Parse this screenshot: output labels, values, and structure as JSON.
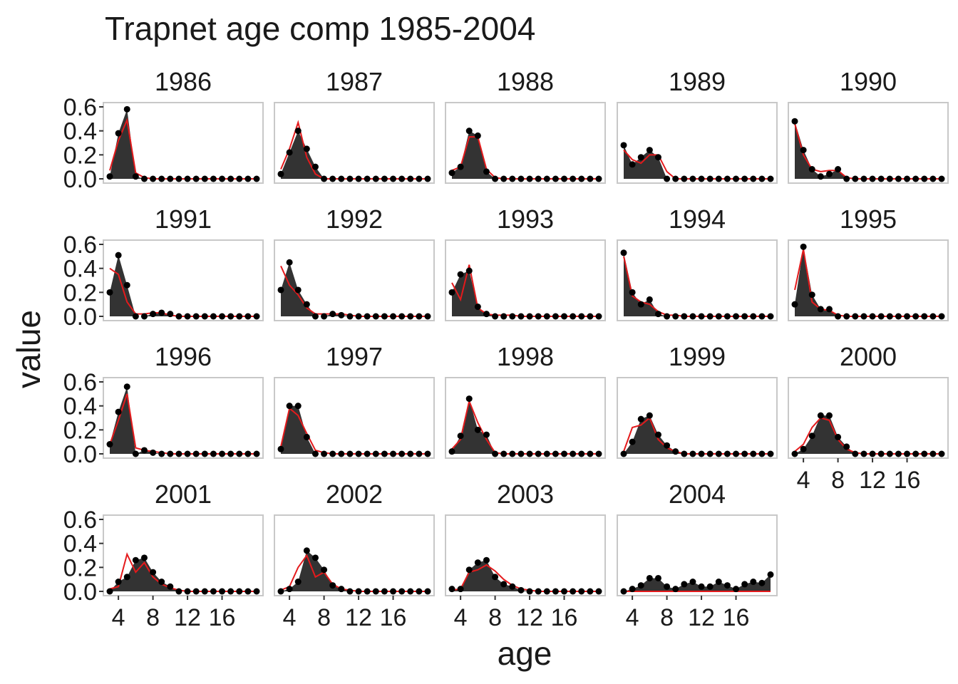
{
  "chart_data": {
    "type": "area",
    "title": "Trapnet age comp 1985-2004",
    "xlabel": "age",
    "ylabel": "value",
    "xlim": [
      3,
      20
    ],
    "ylim": [
      0,
      0.6
    ],
    "x_ticks": [
      4,
      8,
      12,
      16
    ],
    "y_ticks": [
      0.0,
      0.2,
      0.4,
      0.6
    ],
    "y_tick_labels": [
      "0.0",
      "0.2",
      "0.4",
      "0.6"
    ],
    "x": [
      3,
      4,
      5,
      6,
      7,
      8,
      9,
      10,
      11,
      12,
      13,
      14,
      15,
      16,
      17,
      18,
      19,
      20
    ],
    "series": [
      {
        "name": "observed (filled area with points)",
        "color": "#333333"
      },
      {
        "name": "predicted (line)",
        "color": "#e41a1c"
      }
    ],
    "panels": [
      {
        "label": "1986",
        "observed": [
          0.02,
          0.38,
          0.58,
          0.02,
          0,
          0,
          0,
          0,
          0,
          0,
          0,
          0,
          0,
          0,
          0,
          0,
          0,
          0
        ],
        "predicted": [
          0.07,
          0.32,
          0.49,
          0.05,
          0.01,
          0,
          0,
          0,
          0,
          0,
          0,
          0,
          0,
          0,
          0,
          0,
          0,
          0
        ]
      },
      {
        "label": "1987",
        "observed": [
          0.04,
          0.22,
          0.4,
          0.25,
          0.1,
          0,
          0,
          0,
          0,
          0,
          0,
          0,
          0,
          0,
          0,
          0,
          0,
          0
        ],
        "predicted": [
          0.08,
          0.25,
          0.47,
          0.18,
          0.04,
          0,
          0,
          0,
          0,
          0,
          0,
          0,
          0,
          0,
          0,
          0,
          0,
          0
        ]
      },
      {
        "label": "1988",
        "observed": [
          0.05,
          0.1,
          0.4,
          0.36,
          0.06,
          0,
          0,
          0,
          0,
          0,
          0,
          0,
          0,
          0,
          0,
          0,
          0,
          0
        ],
        "predicted": [
          0.07,
          0.1,
          0.35,
          0.35,
          0.08,
          0.01,
          0,
          0,
          0,
          0,
          0,
          0,
          0,
          0,
          0,
          0,
          0,
          0
        ]
      },
      {
        "label": "1989",
        "observed": [
          0.28,
          0.12,
          0.18,
          0.24,
          0.18,
          0,
          0,
          0,
          0,
          0,
          0,
          0,
          0,
          0,
          0,
          0,
          0,
          0
        ],
        "predicted": [
          0.24,
          0.16,
          0.13,
          0.2,
          0.2,
          0.06,
          0,
          0,
          0,
          0,
          0,
          0,
          0,
          0,
          0,
          0,
          0,
          0
        ]
      },
      {
        "label": "1990",
        "observed": [
          0.48,
          0.24,
          0.08,
          0.02,
          0.04,
          0.08,
          0,
          0,
          0,
          0,
          0,
          0,
          0,
          0,
          0,
          0,
          0,
          0
        ],
        "predicted": [
          0.46,
          0.2,
          0.08,
          0.06,
          0.07,
          0.07,
          0.01,
          0,
          0,
          0,
          0,
          0,
          0,
          0,
          0,
          0,
          0,
          0
        ]
      },
      {
        "label": "1991",
        "observed": [
          0.2,
          0.51,
          0.26,
          0,
          0,
          0.02,
          0.03,
          0.02,
          0,
          0,
          0,
          0,
          0,
          0,
          0,
          0,
          0,
          0
        ],
        "predicted": [
          0.4,
          0.35,
          0.12,
          0.02,
          0.02,
          0.03,
          0.03,
          0.01,
          0,
          0,
          0,
          0,
          0,
          0,
          0,
          0,
          0,
          0
        ]
      },
      {
        "label": "1992",
        "observed": [
          0.22,
          0.45,
          0.22,
          0.1,
          0,
          0,
          0.02,
          0.01,
          0,
          0,
          0,
          0,
          0,
          0,
          0,
          0,
          0,
          0
        ],
        "predicted": [
          0.42,
          0.26,
          0.18,
          0.07,
          0.02,
          0.02,
          0.02,
          0.02,
          0.01,
          0,
          0,
          0,
          0,
          0,
          0,
          0,
          0,
          0
        ]
      },
      {
        "label": "1993",
        "observed": [
          0.2,
          0.35,
          0.38,
          0.08,
          0.02,
          0,
          0,
          0,
          0,
          0,
          0,
          0,
          0,
          0,
          0,
          0,
          0,
          0
        ],
        "predicted": [
          0.28,
          0.14,
          0.43,
          0.07,
          0.02,
          0.01,
          0.01,
          0.01,
          0,
          0,
          0,
          0,
          0,
          0,
          0,
          0,
          0,
          0
        ]
      },
      {
        "label": "1994",
        "observed": [
          0.53,
          0.2,
          0.1,
          0.14,
          0.02,
          0,
          0,
          0,
          0,
          0,
          0,
          0,
          0,
          0,
          0,
          0,
          0,
          0
        ],
        "predicted": [
          0.5,
          0.17,
          0.12,
          0.1,
          0.04,
          0.01,
          0.01,
          0,
          0,
          0,
          0,
          0,
          0,
          0,
          0,
          0,
          0,
          0
        ]
      },
      {
        "label": "1995",
        "observed": [
          0.1,
          0.58,
          0.18,
          0.06,
          0.06,
          0,
          0,
          0,
          0,
          0,
          0,
          0,
          0,
          0,
          0,
          0,
          0,
          0
        ],
        "predicted": [
          0.22,
          0.56,
          0.12,
          0.06,
          0.05,
          0.01,
          0,
          0,
          0,
          0,
          0,
          0,
          0,
          0,
          0,
          0,
          0,
          0
        ]
      },
      {
        "label": "1996",
        "observed": [
          0.08,
          0.35,
          0.56,
          0,
          0.03,
          0.01,
          0,
          0,
          0,
          0,
          0,
          0,
          0,
          0,
          0,
          0,
          0,
          0
        ],
        "predicted": [
          0.08,
          0.28,
          0.5,
          0.05,
          0.03,
          0.02,
          0.01,
          0,
          0,
          0,
          0,
          0,
          0,
          0,
          0,
          0,
          0,
          0
        ]
      },
      {
        "label": "1997",
        "observed": [
          0.04,
          0.4,
          0.4,
          0.14,
          0,
          0,
          0,
          0,
          0,
          0,
          0,
          0,
          0,
          0,
          0,
          0,
          0,
          0
        ],
        "predicted": [
          0.06,
          0.38,
          0.32,
          0.17,
          0.03,
          0.01,
          0,
          0,
          0,
          0,
          0,
          0,
          0,
          0,
          0,
          0,
          0,
          0
        ]
      },
      {
        "label": "1998",
        "observed": [
          0.02,
          0.15,
          0.46,
          0.2,
          0.16,
          0,
          0,
          0,
          0,
          0,
          0,
          0,
          0,
          0,
          0,
          0,
          0,
          0
        ],
        "predicted": [
          0.04,
          0.12,
          0.44,
          0.26,
          0.12,
          0.01,
          0,
          0,
          0,
          0,
          0,
          0,
          0,
          0,
          0,
          0,
          0,
          0
        ]
      },
      {
        "label": "1999",
        "observed": [
          0,
          0.1,
          0.29,
          0.32,
          0.16,
          0.07,
          0.02,
          0,
          0,
          0,
          0,
          0,
          0,
          0,
          0,
          0,
          0,
          0
        ],
        "predicted": [
          0.02,
          0.22,
          0.24,
          0.3,
          0.12,
          0.05,
          0.02,
          0,
          0,
          0,
          0,
          0,
          0,
          0,
          0,
          0,
          0,
          0
        ]
      },
      {
        "label": "2000",
        "observed": [
          0,
          0.04,
          0.15,
          0.32,
          0.32,
          0.14,
          0.06,
          0,
          0,
          0,
          0,
          0,
          0,
          0,
          0,
          0,
          0,
          0
        ],
        "predicted": [
          0.02,
          0.08,
          0.22,
          0.3,
          0.28,
          0.12,
          0.04,
          0.01,
          0,
          0,
          0,
          0,
          0,
          0,
          0,
          0,
          0,
          0
        ]
      },
      {
        "label": "2001",
        "observed": [
          0,
          0.08,
          0.12,
          0.26,
          0.28,
          0.16,
          0.08,
          0.04,
          0,
          0,
          0,
          0,
          0,
          0,
          0,
          0,
          0,
          0
        ],
        "predicted": [
          0.02,
          0.04,
          0.31,
          0.16,
          0.24,
          0.12,
          0.06,
          0.03,
          0.01,
          0,
          0,
          0,
          0,
          0,
          0,
          0,
          0,
          0
        ]
      },
      {
        "label": "2002",
        "observed": [
          0,
          0.02,
          0.08,
          0.34,
          0.28,
          0.18,
          0.05,
          0.02,
          0,
          0,
          0,
          0,
          0,
          0,
          0,
          0,
          0,
          0
        ],
        "predicted": [
          0.01,
          0.04,
          0.2,
          0.3,
          0.12,
          0.16,
          0.06,
          0.02,
          0.01,
          0,
          0,
          0,
          0,
          0,
          0,
          0,
          0,
          0
        ]
      },
      {
        "label": "2003",
        "observed": [
          0.02,
          0.02,
          0.18,
          0.24,
          0.26,
          0.12,
          0.06,
          0.04,
          0.01,
          0,
          0,
          0,
          0,
          0,
          0,
          0,
          0,
          0
        ],
        "predicted": [
          0.01,
          0.02,
          0.16,
          0.18,
          0.22,
          0.17,
          0.1,
          0.05,
          0.02,
          0.01,
          0,
          0,
          0,
          0,
          0,
          0,
          0,
          0
        ]
      },
      {
        "label": "2004",
        "observed": [
          0,
          0.02,
          0.05,
          0.11,
          0.11,
          0.04,
          0.02,
          0.06,
          0.08,
          0.04,
          0.04,
          0.08,
          0.05,
          0.02,
          0.06,
          0.08,
          0.07,
          0.14
        ],
        "predicted": [
          0,
          0,
          0,
          0,
          0,
          0,
          0,
          0,
          0,
          0,
          0,
          0,
          0,
          0,
          0,
          0,
          0,
          0
        ]
      }
    ]
  }
}
